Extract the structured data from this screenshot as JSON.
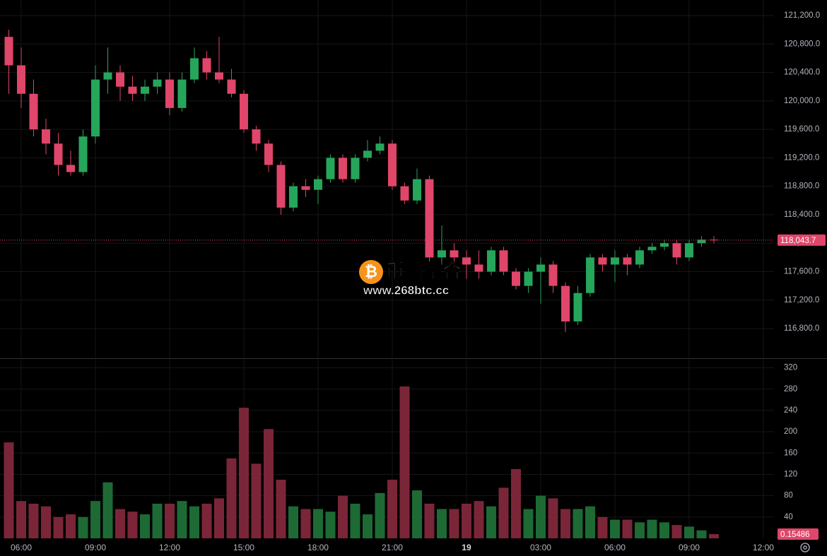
{
  "chart_data": [
    {
      "type": "candlestick",
      "x": [
        5.5,
        6,
        6.5,
        7,
        7.5,
        8,
        8.5,
        9,
        9.5,
        10,
        10.5,
        11,
        11.5,
        12,
        12.5,
        13,
        13.5,
        14,
        14.5,
        15,
        15.5,
        16,
        16.5,
        17,
        17.5,
        18,
        18.5,
        19,
        19.5,
        20,
        20.5,
        21,
        21.5,
        22,
        22.5,
        23,
        23.5,
        24,
        24.5,
        25,
        25.5,
        26,
        26.5,
        27,
        27.5,
        28,
        28.5,
        29,
        29.5,
        30,
        30.5,
        31,
        31.5,
        32,
        32.5,
        33,
        33.5,
        34
      ],
      "open": [
        120900,
        120500,
        120100,
        119600,
        119400,
        119100,
        119000,
        119500,
        120300,
        120400,
        120200,
        120100,
        120200,
        120300,
        119900,
        120300,
        120600,
        120400,
        120300,
        120100,
        119600,
        119400,
        119100,
        118500,
        118800,
        118750,
        118900,
        119200,
        118900,
        119200,
        119300,
        119400,
        118800,
        118600,
        118900,
        117800,
        117900,
        117800,
        117700,
        117600,
        117900,
        117600,
        117400,
        117600,
        117700,
        117400,
        116900,
        117300,
        117800,
        117700,
        117800,
        117700,
        117900,
        117950,
        118000,
        117800,
        118000,
        118050
      ],
      "high": [
        121000,
        120750,
        120300,
        119750,
        119550,
        119300,
        119600,
        120500,
        120750,
        120500,
        120350,
        120300,
        120400,
        120400,
        120400,
        120750,
        120700,
        120900,
        120450,
        120150,
        119650,
        119450,
        119150,
        118850,
        118900,
        118950,
        119250,
        119250,
        119250,
        119450,
        119500,
        119450,
        118850,
        119050,
        118950,
        118250,
        118000,
        117900,
        117900,
        117950,
        117950,
        117650,
        117650,
        117800,
        117750,
        117450,
        117400,
        117850,
        117850,
        117900,
        117850,
        117950,
        118000,
        118050,
        118050,
        118050,
        118100,
        118100
      ],
      "low": [
        120100,
        119900,
        119500,
        119250,
        118950,
        118950,
        118950,
        119400,
        120100,
        120000,
        120000,
        120000,
        120100,
        119800,
        119850,
        120250,
        120300,
        120250,
        120050,
        119550,
        119300,
        119000,
        118400,
        118450,
        118650,
        118550,
        118850,
        118850,
        118850,
        119150,
        119250,
        118750,
        118550,
        118550,
        117650,
        117700,
        117650,
        117500,
        117500,
        117550,
        117550,
        117350,
        117300,
        117150,
        117300,
        116750,
        116850,
        117250,
        117600,
        117450,
        117550,
        117650,
        117850,
        117900,
        117700,
        117750,
        117950,
        118000
      ],
      "close": [
        120500,
        120100,
        119600,
        119400,
        119100,
        119000,
        119500,
        120300,
        120400,
        120200,
        120100,
        120200,
        120300,
        119900,
        120300,
        120600,
        120400,
        120300,
        120100,
        119600,
        119400,
        119100,
        118500,
        118800,
        118750,
        118900,
        119200,
        118900,
        119200,
        119300,
        119400,
        118800,
        118600,
        118900,
        117800,
        117900,
        117800,
        117700,
        117600,
        117900,
        117600,
        117400,
        117600,
        117700,
        117400,
        116900,
        117300,
        117800,
        117700,
        117800,
        117700,
        117900,
        117950,
        118000,
        117800,
        118000,
        118050,
        118043.7
      ],
      "up_color": "#26a65b",
      "down_color": "#e0466a",
      "xlim": [
        5.143,
        36.43
      ],
      "ylim": [
        116384,
        121418
      ],
      "xticks": [
        {
          "value": 6,
          "label": "06:00"
        },
        {
          "value": 9,
          "label": "09:00"
        },
        {
          "value": 12,
          "label": "12:00"
        },
        {
          "value": 15,
          "label": "15:00"
        },
        {
          "value": 18,
          "label": "18:00"
        },
        {
          "value": 21,
          "label": "21:00"
        },
        {
          "value": 24,
          "label": "19"
        },
        {
          "value": 27,
          "label": "03:00"
        },
        {
          "value": 30,
          "label": "06:00"
        },
        {
          "value": 33,
          "label": "09:00"
        },
        {
          "value": 36,
          "label": "12:00"
        }
      ],
      "yticks": [
        {
          "value": 116800,
          "label": "116,800.0"
        },
        {
          "value": 117200,
          "label": "117,200.0"
        },
        {
          "value": 117600,
          "label": "117,600.0"
        },
        {
          "value": 118000,
          "label": "118,000.0"
        },
        {
          "value": 118400,
          "label": "118,400.0"
        },
        {
          "value": 118800,
          "label": "118,800.0"
        },
        {
          "value": 119200,
          "label": "119,200.0"
        },
        {
          "value": 119600,
          "label": "119,600.0"
        },
        {
          "value": 120000,
          "label": "120,000.0"
        },
        {
          "value": 120400,
          "label": "120,400.0"
        },
        {
          "value": 120800,
          "label": "120,800.0"
        },
        {
          "value": 121200,
          "label": "121,200.0"
        }
      ],
      "last_price": {
        "value": 118043.7,
        "label": "118,043.7"
      },
      "grid": true
    },
    {
      "type": "bar",
      "x": [
        5.5,
        6,
        6.5,
        7,
        7.5,
        8,
        8.5,
        9,
        9.5,
        10,
        10.5,
        11,
        11.5,
        12,
        12.5,
        13,
        13.5,
        14,
        14.5,
        15,
        15.5,
        16,
        16.5,
        17,
        17.5,
        18,
        18.5,
        19,
        19.5,
        20,
        20.5,
        21,
        21.5,
        22,
        22.5,
        23,
        23.5,
        24,
        24.5,
        25,
        25.5,
        26,
        26.5,
        27,
        27.5,
        28,
        28.5,
        29,
        29.5,
        30,
        30.5,
        31,
        31.5,
        32,
        32.5,
        33,
        33.5,
        34
      ],
      "values": [
        180,
        70,
        65,
        60,
        40,
        45,
        40,
        70,
        105,
        55,
        50,
        45,
        65,
        65,
        70,
        60,
        65,
        75,
        150,
        245,
        140,
        205,
        110,
        60,
        55,
        55,
        50,
        80,
        65,
        45,
        85,
        110,
        285,
        90,
        65,
        55,
        55,
        65,
        70,
        60,
        95,
        130,
        55,
        80,
        75,
        55,
        55,
        60,
        40,
        35,
        35,
        30,
        35,
        30,
        25,
        22,
        15,
        8
      ],
      "up_color": "#1d6a35",
      "down_color": "#7a2638",
      "xlim": [
        5.143,
        36.43
      ],
      "ylim": [
        0,
        338
      ],
      "yticks": [
        40,
        80,
        120,
        160,
        200,
        240,
        280,
        320
      ],
      "last_volume": 0.15486,
      "grid": true
    }
  ],
  "watermark": {
    "icon": "₿",
    "title": "币圈聚合",
    "url": "www.268btc.cc"
  }
}
